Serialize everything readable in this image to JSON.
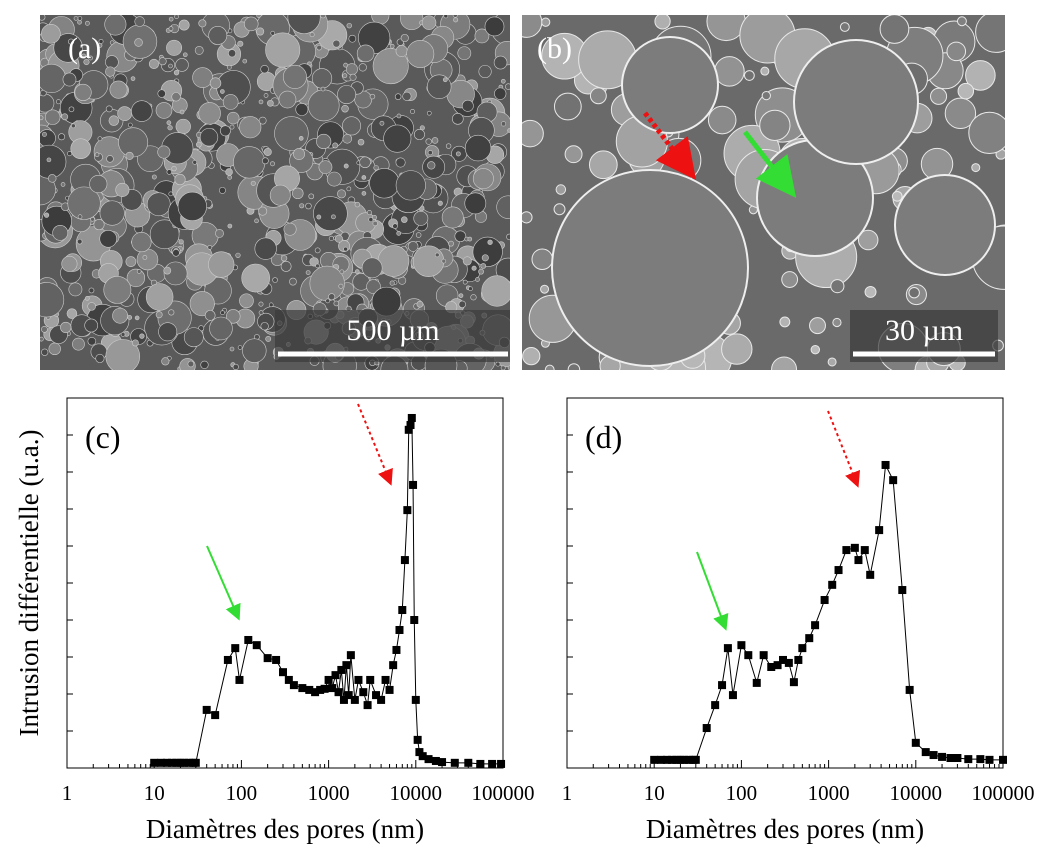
{
  "images": [
    {
      "label": "(a)",
      "scale_bar": "500 µm"
    },
    {
      "label": "(b)",
      "scale_bar": "30 µm"
    }
  ],
  "chart_data": [
    {
      "type": "line",
      "label": "(c)",
      "xlabel": "Diamètres des pores (nm)",
      "ylabel": "Intrusion différentielle (u.a.)",
      "log_x": true,
      "xlim": [
        1,
        100000
      ],
      "xticks": [
        1,
        10,
        100,
        1000,
        10000,
        100000
      ],
      "ylim": [
        0,
        100
      ],
      "color": "#000000",
      "x": [
        10,
        12,
        14,
        16,
        18,
        20,
        22,
        25,
        28,
        30,
        40,
        50,
        70,
        85,
        95,
        120,
        150,
        200,
        250,
        300,
        350,
        400,
        500,
        600,
        700,
        800,
        900,
        1000,
        1100,
        1200,
        1300,
        1400,
        1500,
        1600,
        1700,
        1800,
        2000,
        2200,
        2500,
        2800,
        3000,
        3500,
        4000,
        4500,
        5000,
        5500,
        6000,
        6500,
        7000,
        7500,
        8000,
        8300,
        8700,
        9000,
        9300,
        9600,
        10000,
        10500,
        11000,
        12000,
        14000,
        17000,
        20000,
        28000,
        40000,
        55000,
        75000,
        95000
      ],
      "values": [
        1.4,
        1.4,
        1.4,
        1.4,
        1.4,
        1.4,
        1.4,
        1.4,
        1.4,
        1.4,
        15.7,
        14.3,
        29.2,
        32.4,
        23.8,
        34.6,
        33.2,
        29.7,
        29.2,
        25.9,
        23.8,
        22.4,
        21.6,
        21.1,
        20.5,
        21.1,
        21.4,
        23.8,
        21.6,
        25.1,
        20.5,
        26.5,
        18.4,
        27.8,
        19.7,
        30.5,
        18.4,
        23.8,
        20.5,
        17.0,
        23.8,
        19.7,
        18.4,
        23.8,
        21.1,
        27.8,
        31.9,
        37.3,
        42.7,
        56.2,
        69.7,
        91.4,
        92.7,
        94.6,
        76.5,
        40.0,
        18.4,
        7.6,
        4.3,
        3.2,
        2.4,
        1.9,
        1.6,
        1.4,
        1.4,
        1.1,
        1.1,
        1.1
      ]
    },
    {
      "type": "line",
      "label": "(d)",
      "xlabel": "Diamètres des pores (nm)",
      "log_x": true,
      "xlim": [
        1,
        100000
      ],
      "xticks": [
        1,
        10,
        100,
        1000,
        10000,
        100000
      ],
      "ylim": [
        0,
        100
      ],
      "color": "#000000",
      "x": [
        10,
        12,
        14,
        16,
        18,
        20,
        22,
        25,
        28,
        30,
        40,
        50,
        60,
        70,
        80,
        100,
        120,
        150,
        180,
        220,
        260,
        300,
        350,
        400,
        450,
        500,
        600,
        700,
        900,
        1100,
        1300,
        1600,
        2000,
        2200,
        2600,
        3000,
        3800,
        4500,
        5500,
        7000,
        8500,
        10000,
        13000,
        16000,
        20000,
        25000,
        30000,
        40000,
        55000,
        70000,
        100000
      ],
      "values": [
        2.2,
        2.2,
        2.2,
        2.2,
        2.2,
        2.2,
        2.2,
        2.2,
        2.2,
        2.2,
        10.8,
        17.0,
        22.4,
        32.4,
        19.7,
        33.2,
        30.5,
        23.0,
        30.5,
        27.3,
        27.8,
        29.2,
        28.4,
        23.2,
        29.2,
        32.4,
        35.1,
        38.6,
        45.4,
        49.5,
        53.5,
        58.9,
        59.5,
        56.2,
        58.9,
        52.2,
        64.3,
        81.9,
        77.8,
        48.1,
        21.1,
        6.8,
        4.3,
        3.5,
        3.0,
        2.7,
        2.7,
        2.4,
        2.4,
        2.2,
        2.2
      ]
    }
  ]
}
